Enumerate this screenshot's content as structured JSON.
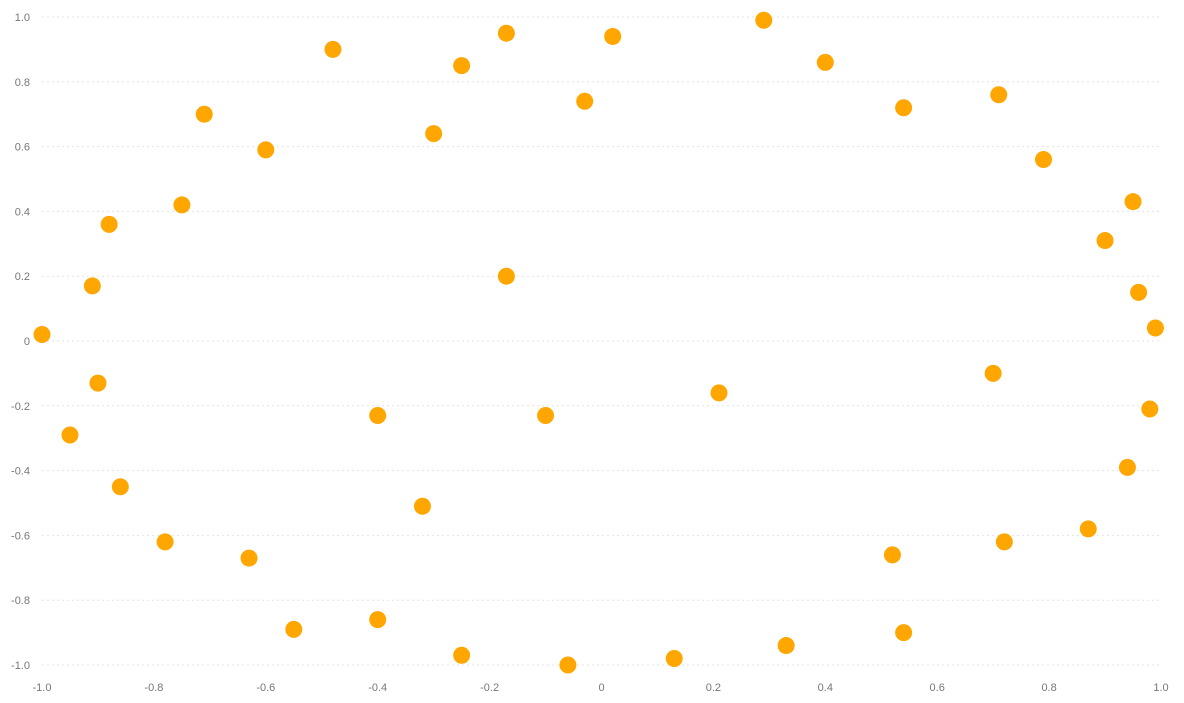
{
  "chart_data": {
    "type": "scatter",
    "title": "",
    "xlabel": "",
    "ylabel": "",
    "xlim": [
      -1.0,
      1.0
    ],
    "ylim": [
      -1.0,
      1.0
    ],
    "grid": {
      "horizontal": true,
      "vertical": false,
      "style": "dotted"
    },
    "legend": "none",
    "x_ticks": [
      "-1.0",
      "-0.8",
      "-0.6",
      "-0.4",
      "-0.2",
      "0",
      "0.2",
      "0.4",
      "0.6",
      "0.8",
      "1.0"
    ],
    "y_ticks": [
      "1.0",
      "0.8",
      "0.6",
      "0.4",
      "0.2",
      "0",
      "-0.2",
      "-0.4",
      "-0.6",
      "-0.8",
      "-1.0"
    ],
    "marker_color": "#ffa600",
    "series": [
      {
        "points": [
          [
            -1.0,
            0.02
          ],
          [
            -0.91,
            0.17
          ],
          [
            -0.88,
            0.36
          ],
          [
            -0.75,
            0.42
          ],
          [
            -0.71,
            0.7
          ],
          [
            -0.6,
            0.59
          ],
          [
            -0.48,
            0.9
          ],
          [
            -0.3,
            0.64
          ],
          [
            -0.25,
            0.85
          ],
          [
            -0.17,
            0.95
          ],
          [
            -0.03,
            0.74
          ],
          [
            0.02,
            0.94
          ],
          [
            0.29,
            0.99
          ],
          [
            0.4,
            0.86
          ],
          [
            0.54,
            0.72
          ],
          [
            0.71,
            0.76
          ],
          [
            0.79,
            0.56
          ],
          [
            0.95,
            0.43
          ],
          [
            0.9,
            0.31
          ],
          [
            0.96,
            0.15
          ],
          [
            0.99,
            0.04
          ],
          [
            -0.17,
            0.2
          ],
          [
            -0.9,
            -0.13
          ],
          [
            -0.95,
            -0.29
          ],
          [
            -0.86,
            -0.45
          ],
          [
            -0.78,
            -0.62
          ],
          [
            -0.63,
            -0.67
          ],
          [
            -0.55,
            -0.89
          ],
          [
            -0.4,
            -0.86
          ],
          [
            -0.4,
            -0.23
          ],
          [
            -0.32,
            -0.51
          ],
          [
            -0.25,
            -0.97
          ],
          [
            -0.1,
            -0.23
          ],
          [
            -0.06,
            -1.0
          ],
          [
            0.13,
            -0.98
          ],
          [
            0.21,
            -0.16
          ],
          [
            0.33,
            -0.94
          ],
          [
            0.52,
            -0.66
          ],
          [
            0.54,
            -0.9
          ],
          [
            0.7,
            -0.1
          ],
          [
            0.72,
            -0.62
          ],
          [
            0.87,
            -0.58
          ],
          [
            0.94,
            -0.39
          ],
          [
            0.98,
            -0.21
          ]
        ]
      }
    ]
  }
}
